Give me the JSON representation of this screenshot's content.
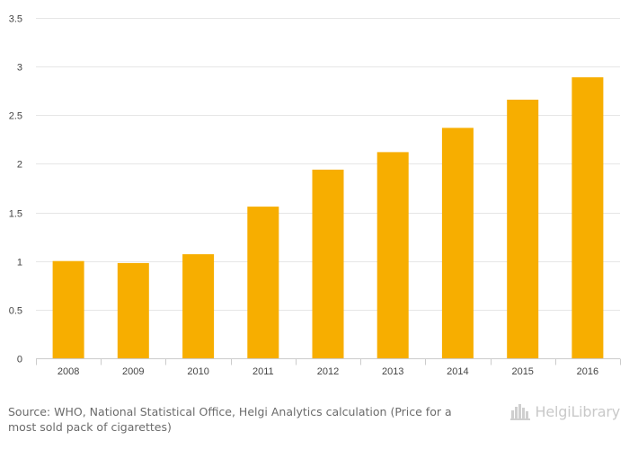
{
  "chart_data": {
    "type": "bar",
    "categories": [
      "2008",
      "2009",
      "2010",
      "2011",
      "2012",
      "2013",
      "2014",
      "2015",
      "2016"
    ],
    "values": [
      1.0,
      0.98,
      1.07,
      1.56,
      1.94,
      2.12,
      2.37,
      2.66,
      2.89
    ],
    "ylim": [
      0,
      3.5
    ],
    "yticks": [
      "0",
      "0.5",
      "1",
      "1.5",
      "2",
      "2.5",
      "3",
      "3.5"
    ],
    "grid": true,
    "bar_color": "#f7ae00",
    "grid_color": "#e6e6e6",
    "axis_color": "#cccccc"
  },
  "footer": {
    "source_label": "Source:",
    "source_text": "WHO, National Statistical Office, Helgi Analytics calculation (Price for a most sold pack of cigarettes)"
  },
  "brand": {
    "name": "HelgiLibrary",
    "icon": "helgi-logo-icon"
  }
}
